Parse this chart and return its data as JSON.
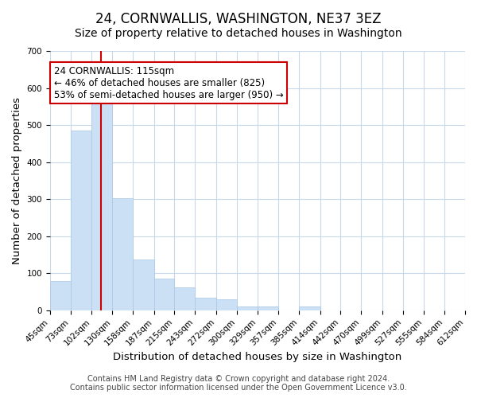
{
  "title": "24, CORNWALLIS, WASHINGTON, NE37 3EZ",
  "subtitle": "Size of property relative to detached houses in Washington",
  "xlabel": "Distribution of detached houses by size in Washington",
  "ylabel": "Number of detached properties",
  "bar_color": "#cce0f5",
  "bar_edgecolor": "#a8c8e8",
  "bar_linewidth": 0.5,
  "redline_x": 115,
  "annotation_title": "24 CORNWALLIS: 115sqm",
  "annotation_line1": "← 46% of detached houses are smaller (825)",
  "annotation_line2": "53% of semi-detached houses are larger (950) →",
  "annotation_box_color": "#ffffff",
  "annotation_box_edgecolor": "#cc0000",
  "redline_color": "#cc0000",
  "ylim": [
    0,
    700
  ],
  "yticks": [
    0,
    100,
    200,
    300,
    400,
    500,
    600,
    700
  ],
  "bin_edges": [
    45,
    73,
    102,
    130,
    158,
    187,
    215,
    243,
    272,
    300,
    329,
    357,
    385,
    414,
    442,
    470,
    499,
    527,
    555,
    584,
    612
  ],
  "bin_labels": [
    "45sqm",
    "73sqm",
    "102sqm",
    "130sqm",
    "158sqm",
    "187sqm",
    "215sqm",
    "243sqm",
    "272sqm",
    "300sqm",
    "329sqm",
    "357sqm",
    "385sqm",
    "414sqm",
    "442sqm",
    "470sqm",
    "499sqm",
    "527sqm",
    "555sqm",
    "584sqm",
    "612sqm"
  ],
  "bar_heights": [
    80,
    485,
    565,
    303,
    138,
    85,
    63,
    35,
    30,
    10,
    10,
    0,
    10,
    0,
    0,
    0,
    0,
    0,
    0,
    0
  ],
  "footer1": "Contains HM Land Registry data © Crown copyright and database right 2024.",
  "footer2": "Contains public sector information licensed under the Open Government Licence v3.0.",
  "background_color": "#ffffff",
  "grid_color": "#c8d8e8",
  "title_fontsize": 12,
  "subtitle_fontsize": 10,
  "axis_label_fontsize": 9.5,
  "tick_fontsize": 7.5,
  "footer_fontsize": 7,
  "annotation_fontsize": 8.5
}
